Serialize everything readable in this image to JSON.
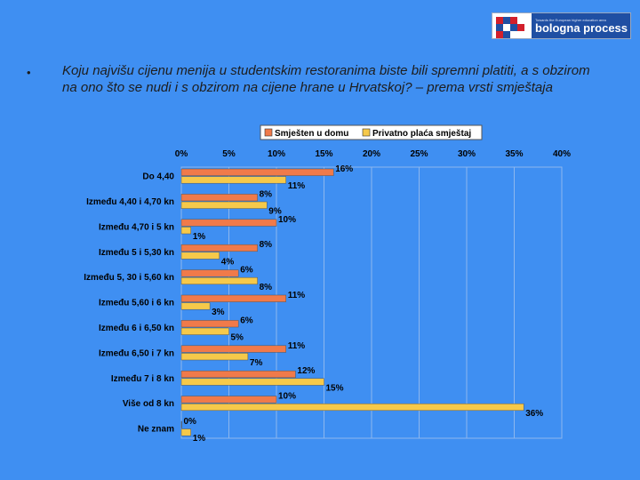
{
  "logo": {
    "subtitle": "Towards the European higher education area",
    "name": "bologna process"
  },
  "bullet": "•",
  "question": "Koju najvišu cijenu menija u studentskim restoranima biste bili spremni platiti, a s obzirom na ono što se nudi i s obzirom na cijene hrane u Hrvatskoj? – prema vrsti smještaja",
  "colors": {
    "background": "#3f8ff2",
    "series1": "#f07a4a",
    "series2": "#f6c94a",
    "grid": "#8db7ee"
  },
  "chart_data": {
    "type": "bar",
    "orientation": "horizontal",
    "categories": [
      "Do 4,40",
      "Između 4,40 i 4,70 kn",
      "Između 4,70 i 5 kn",
      "Između 5 i 5,30 kn",
      "Između 5, 30 i 5,60 kn",
      "Između 5,60 i 6 kn",
      "Između 6 i 6,50 kn",
      "Između 6,50 i 7 kn",
      "Između 7 i 8 kn",
      "Više od 8 kn",
      "Ne znam"
    ],
    "series": [
      {
        "name": "Smješten u domu",
        "color": "#f07a4a",
        "values": [
          16,
          8,
          10,
          8,
          6,
          11,
          6,
          11,
          12,
          10,
          0
        ]
      },
      {
        "name": "Privatno plaća smještaj",
        "color": "#f6c94a",
        "values": [
          11,
          9,
          1,
          4,
          8,
          3,
          5,
          7,
          15,
          36,
          1
        ]
      }
    ],
    "xlim": [
      0,
      40
    ],
    "ticks": [
      "0%",
      "5%",
      "10%",
      "15%",
      "20%",
      "25%",
      "30%",
      "35%",
      "40%"
    ],
    "legend_position": "top",
    "grid": true
  }
}
